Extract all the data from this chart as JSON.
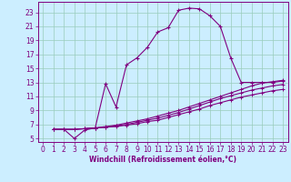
{
  "xlabel": "Windchill (Refroidissement éolien,°C)",
  "bg_color": "#cceeff",
  "line_color": "#800080",
  "grid_color": "#99ccbb",
  "xlim": [
    -0.5,
    23.5
  ],
  "ylim": [
    4.5,
    24.5
  ],
  "yticks": [
    5,
    7,
    9,
    11,
    13,
    15,
    17,
    19,
    21,
    23
  ],
  "xticks": [
    0,
    1,
    2,
    3,
    4,
    5,
    6,
    7,
    8,
    9,
    10,
    11,
    12,
    13,
    14,
    15,
    16,
    17,
    18,
    19,
    20,
    21,
    22,
    23
  ],
  "line1_x": [
    1,
    2,
    3,
    4,
    5,
    6,
    7,
    8,
    9,
    10,
    11,
    12,
    13,
    14,
    15,
    16,
    17,
    18,
    19,
    20,
    21,
    22,
    23
  ],
  "line1_y": [
    6.3,
    6.3,
    5.0,
    6.2,
    6.5,
    12.8,
    9.5,
    15.5,
    16.5,
    18.0,
    20.2,
    20.8,
    23.3,
    23.6,
    23.5,
    22.5,
    21.0,
    16.5,
    13.0,
    13.0,
    13.0,
    13.0,
    13.2
  ],
  "line2_x": [
    1,
    2,
    3,
    4,
    5,
    6,
    7,
    8,
    9,
    10,
    11,
    12,
    13,
    14,
    15,
    16,
    17,
    18,
    19,
    20,
    21,
    22,
    23
  ],
  "line2_y": [
    6.3,
    6.3,
    6.3,
    6.4,
    6.5,
    6.7,
    6.9,
    7.2,
    7.5,
    7.8,
    8.2,
    8.6,
    9.0,
    9.5,
    10.0,
    10.5,
    11.0,
    11.5,
    12.0,
    12.5,
    12.9,
    13.1,
    13.3
  ],
  "line3_x": [
    1,
    2,
    3,
    4,
    5,
    6,
    7,
    8,
    9,
    10,
    11,
    12,
    13,
    14,
    15,
    16,
    17,
    18,
    19,
    20,
    21,
    22,
    23
  ],
  "line3_y": [
    6.3,
    6.3,
    6.3,
    6.4,
    6.5,
    6.6,
    6.8,
    7.0,
    7.3,
    7.6,
    7.9,
    8.3,
    8.7,
    9.2,
    9.7,
    10.2,
    10.7,
    11.1,
    11.5,
    11.9,
    12.2,
    12.5,
    12.7
  ],
  "line4_x": [
    1,
    2,
    3,
    4,
    5,
    6,
    7,
    8,
    9,
    10,
    11,
    12,
    13,
    14,
    15,
    16,
    17,
    18,
    19,
    20,
    21,
    22,
    23
  ],
  "line4_y": [
    6.3,
    6.3,
    6.3,
    6.4,
    6.5,
    6.6,
    6.7,
    6.9,
    7.1,
    7.4,
    7.6,
    8.0,
    8.4,
    8.8,
    9.2,
    9.7,
    10.1,
    10.5,
    10.9,
    11.2,
    11.5,
    11.8,
    12.0
  ],
  "tick_fontsize": 5.5,
  "xlabel_fontsize": 5.5
}
